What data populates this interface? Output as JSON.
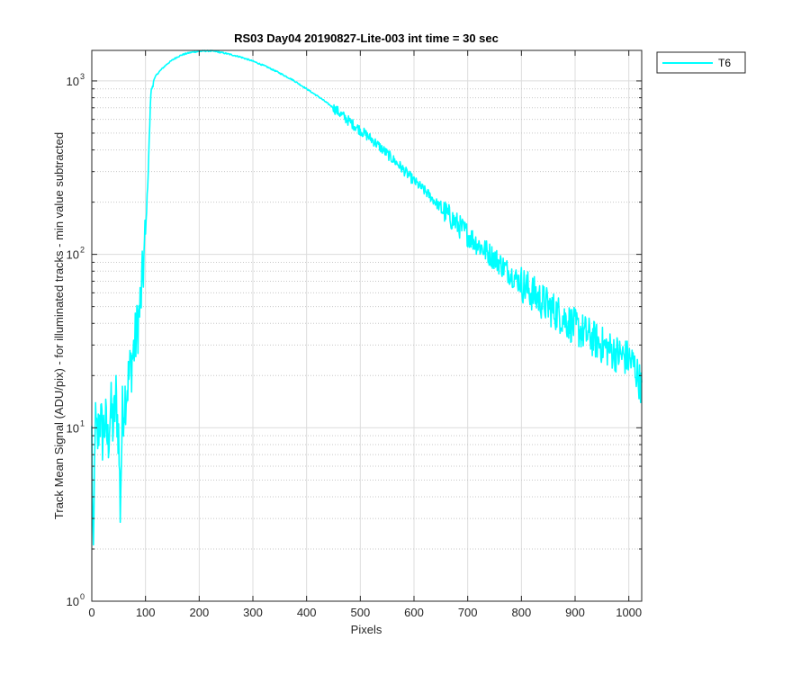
{
  "chart_data": {
    "type": "line",
    "title": "RS03 Day04 20190827-Lite-003 int time = 30 sec",
    "xlabel": "Pixels",
    "ylabel": "Track Mean Signal (ADU/pix) - for illuminated tracks - min value subtracted",
    "xlim": [
      0,
      1024
    ],
    "ylim": [
      1,
      1500
    ],
    "yscale": "log",
    "grid": true,
    "legend_position": "outside-top-right",
    "x_ticks": [
      "0",
      "100",
      "200",
      "300",
      "400",
      "500",
      "600",
      "700",
      "800",
      "900",
      "1000"
    ],
    "x_tick_values": [
      0,
      100,
      200,
      300,
      400,
      500,
      600,
      700,
      800,
      900,
      1000
    ],
    "y_ticks": [
      {
        "value": 1,
        "base": "10",
        "exp": "0"
      },
      {
        "value": 10,
        "base": "10",
        "exp": "1"
      },
      {
        "value": 100,
        "base": "10",
        "exp": "2"
      },
      {
        "value": 1000,
        "base": "10",
        "exp": "3"
      }
    ],
    "series": [
      {
        "name": "T6",
        "color": "#00FFFF",
        "points": [
          [
            0,
            9
          ],
          [
            3,
            1.4
          ],
          [
            6,
            11
          ],
          [
            10,
            8
          ],
          [
            15,
            12
          ],
          [
            20,
            9
          ],
          [
            25,
            11
          ],
          [
            30,
            8
          ],
          [
            35,
            13
          ],
          [
            40,
            10
          ],
          [
            45,
            15
          ],
          [
            50,
            9
          ],
          [
            53,
            3.5
          ],
          [
            57,
            12
          ],
          [
            60,
            14
          ],
          [
            65,
            17
          ],
          [
            70,
            20
          ],
          [
            75,
            25
          ],
          [
            80,
            30
          ],
          [
            85,
            38
          ],
          [
            90,
            50
          ],
          [
            95,
            75
          ],
          [
            100,
            130
          ],
          [
            105,
            300
          ],
          [
            110,
            850
          ],
          [
            115,
            1000
          ],
          [
            120,
            1080
          ],
          [
            130,
            1170
          ],
          [
            140,
            1250
          ],
          [
            150,
            1320
          ],
          [
            160,
            1380
          ],
          [
            170,
            1420
          ],
          [
            180,
            1450
          ],
          [
            190,
            1470
          ],
          [
            200,
            1480
          ],
          [
            210,
            1490
          ],
          [
            220,
            1490
          ],
          [
            230,
            1480
          ],
          [
            250,
            1440
          ],
          [
            275,
            1380
          ],
          [
            300,
            1300
          ],
          [
            325,
            1210
          ],
          [
            350,
            1110
          ],
          [
            375,
            1010
          ],
          [
            400,
            900
          ],
          [
            425,
            800
          ],
          [
            450,
            700
          ],
          [
            475,
            600
          ],
          [
            500,
            520
          ],
          [
            525,
            450
          ],
          [
            550,
            380
          ],
          [
            575,
            320
          ],
          [
            600,
            265
          ],
          [
            625,
            225
          ],
          [
            650,
            185
          ],
          [
            675,
            155
          ],
          [
            700,
            130
          ],
          [
            725,
            110
          ],
          [
            750,
            95
          ],
          [
            775,
            80
          ],
          [
            800,
            68
          ],
          [
            825,
            58
          ],
          [
            850,
            50
          ],
          [
            875,
            44
          ],
          [
            900,
            38
          ],
          [
            925,
            34
          ],
          [
            950,
            30
          ],
          [
            975,
            27
          ],
          [
            1000,
            25
          ],
          [
            1010,
            23
          ],
          [
            1024,
            17
          ]
        ]
      }
    ]
  }
}
